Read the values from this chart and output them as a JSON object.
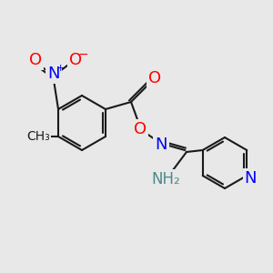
{
  "bg_color": "#e8e8e8",
  "bond_color": "#1a1a1a",
  "atom_colors": {
    "O": "#ff0000",
    "N": "#0000ff",
    "N_nitro": "#0000ff",
    "N_amino": "#4a8a8a",
    "C": "#1a1a1a"
  },
  "font_size_atoms": 13,
  "font_size_small": 10,
  "title": ""
}
